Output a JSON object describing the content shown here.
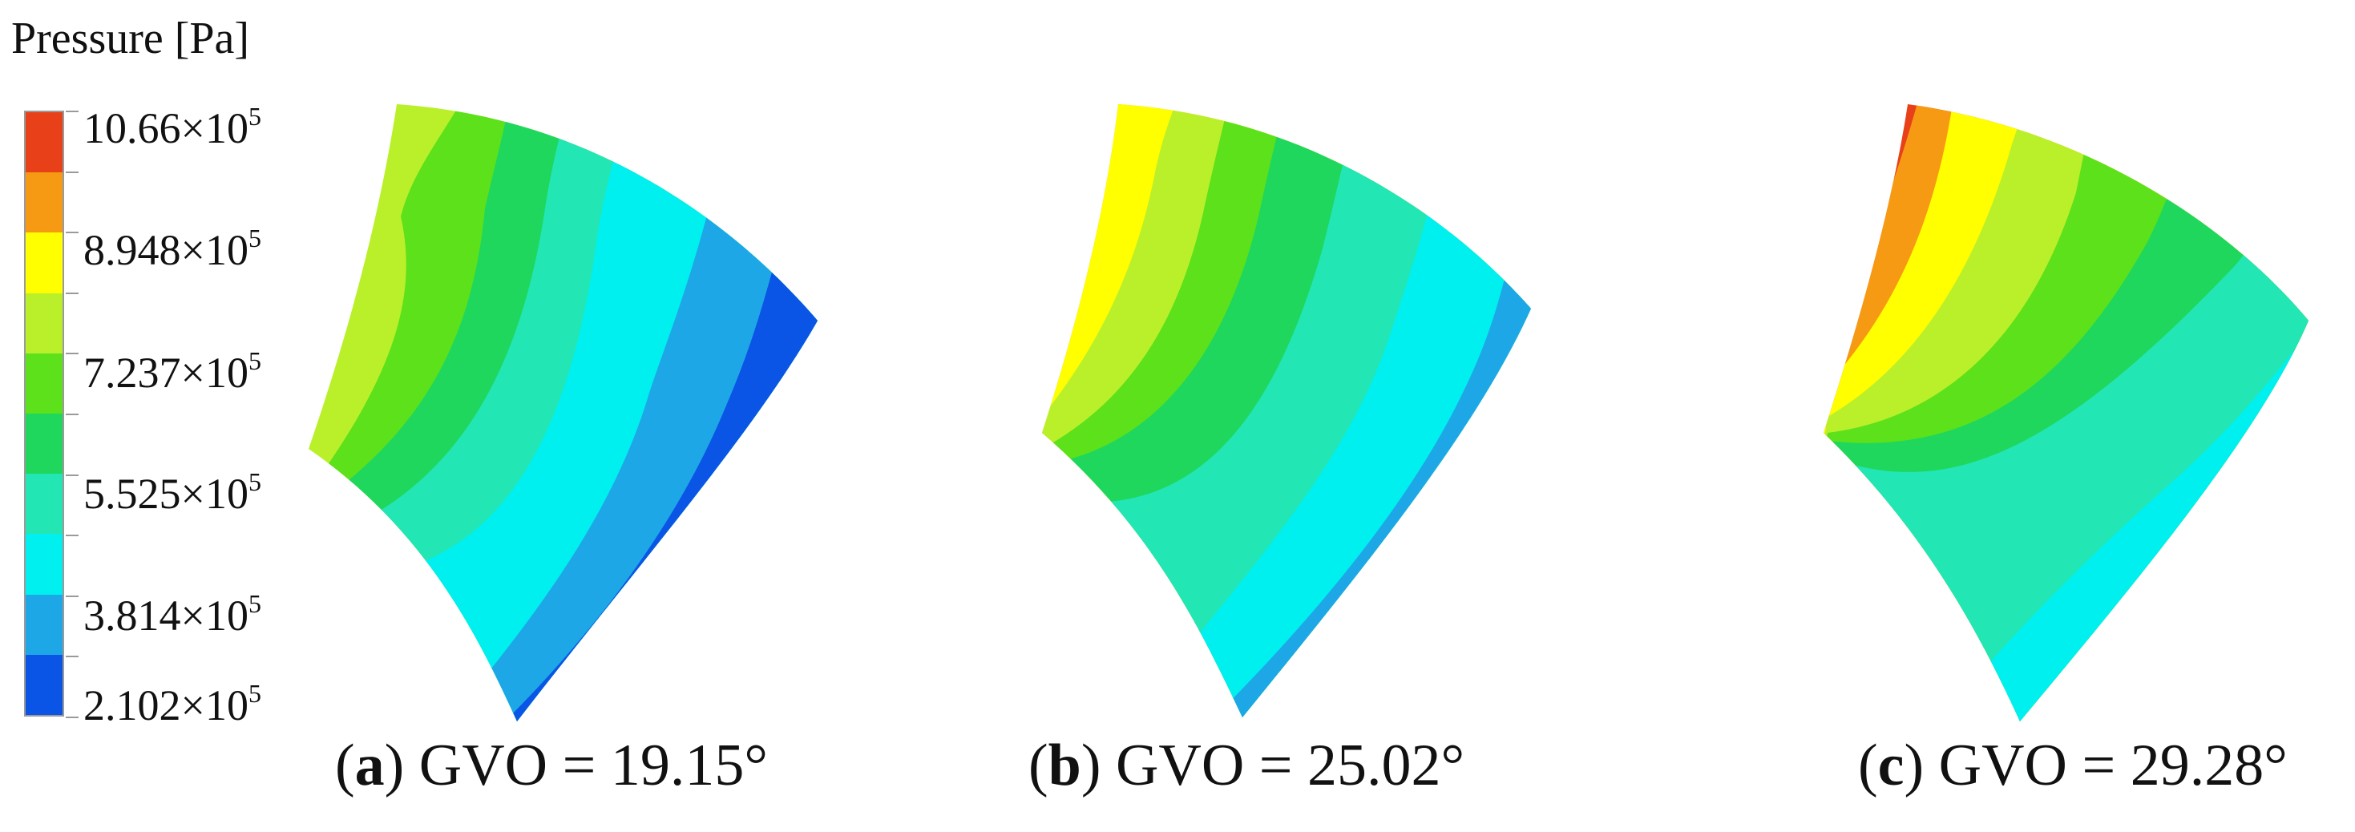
{
  "legend": {
    "title": "Pressure [Pa]",
    "labels": [
      {
        "mantissa": "10.66×10",
        "exp": "5"
      },
      {
        "mantissa": "8.948×10",
        "exp": "5"
      },
      {
        "mantissa": "7.237×10",
        "exp": "5"
      },
      {
        "mantissa": "5.525×10",
        "exp": "5"
      },
      {
        "mantissa": "3.814×10",
        "exp": "5"
      },
      {
        "mantissa": "2.102×10",
        "exp": "5"
      }
    ],
    "colors": [
      "#e8411a",
      "#f79a13",
      "#ffff00",
      "#b9f02a",
      "#5ce11b",
      "#1fd75d",
      "#22e6b4",
      "#00f0f0",
      "#1ea7e6",
      "#0a55e6"
    ]
  },
  "panels": [
    {
      "letter": "a",
      "caption": ") GVO = 19.15°"
    },
    {
      "letter": "b",
      "caption": ") GVO = 25.02°"
    },
    {
      "letter": "c",
      "caption": ") GVO = 29.28°"
    }
  ]
}
